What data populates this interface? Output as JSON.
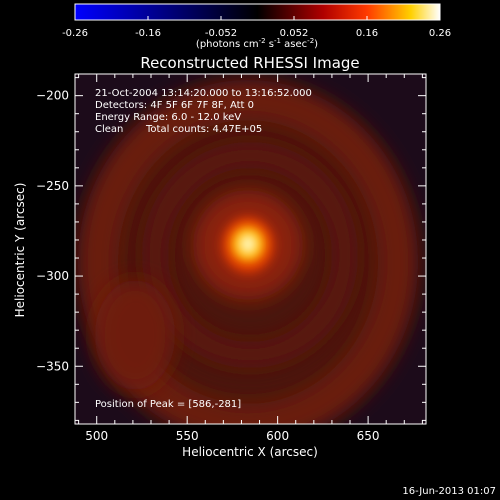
{
  "colors": {
    "background": "#000000",
    "foreground": "#ffffff",
    "colormap_stops": [
      "#0000ff",
      "#000000",
      "#b00000",
      "#ff3a00",
      "#ffd000",
      "#ffffff"
    ],
    "image_background": "#1a0a18"
  },
  "colorbar": {
    "min": -0.26,
    "max": 0.26,
    "tick_labels": [
      "-0.26",
      "-0.16",
      "-0.052",
      "0.052",
      "0.16",
      "0.26"
    ],
    "tick_values": [
      -0.26,
      -0.156,
      -0.052,
      0.052,
      0.156,
      0.26
    ],
    "unit_label_main": "(photons cm",
    "unit_sup1": "-2",
    "unit_mid1": " s",
    "unit_sup2": "-1",
    "unit_mid2": " asec",
    "unit_sup3": "-2",
    "unit_end": ")"
  },
  "chart_data": {
    "type": "heatmap",
    "title": "Reconstructed RHESSI Image",
    "xlabel": "Heliocentric X (arcsec)",
    "ylabel": "Heliocentric Y (arcsec)",
    "xlim": [
      488,
      682
    ],
    "ylim": [
      -382,
      -188
    ],
    "x_ticks": [
      500,
      550,
      600,
      650
    ],
    "y_ticks": [
      -200,
      -250,
      -300,
      -350
    ],
    "x_tick_labels": [
      "500",
      "550",
      "600",
      "650"
    ],
    "y_tick_labels": [
      "−200",
      "−250",
      "−300",
      "−350"
    ],
    "peak_position": [
      586,
      -281
    ],
    "annotations": {
      "line1": "21-Oct-2004 13:14:20.000 to 13:16:52.000",
      "line2": "Detectors: 4F 5F 6F 7F 8F, Att 0",
      "line3": "Energy Range: 6.0 - 12.0 keV",
      "line4_a": "Clean",
      "line4_b": "Total counts: 4.47E+05",
      "peak_text": "Position of Peak = [586,-281]"
    }
  },
  "footer": {
    "timestamp": "16-Jun-2013 01:07"
  }
}
